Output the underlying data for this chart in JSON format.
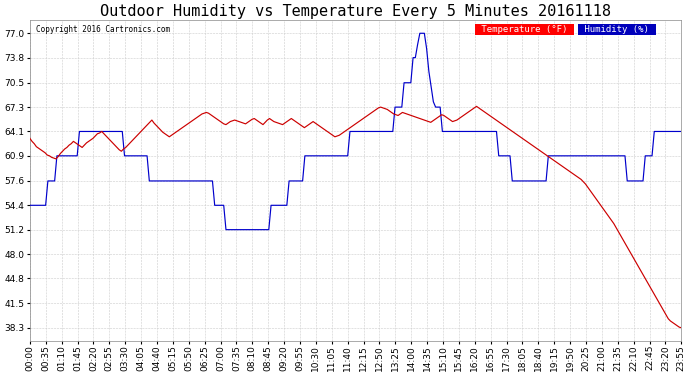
{
  "title": "Outdoor Humidity vs Temperature Every 5 Minutes 20161118",
  "copyright": "Copyright 2016 Cartronics.com",
  "legend_temp": "Temperature (°F)",
  "legend_hum": "Humidity (%)",
  "legend_temp_bg": "#ff0000",
  "legend_hum_bg": "#0000bb",
  "temp_color": "#cc0000",
  "hum_color": "#0000cc",
  "ylim": [
    36.6,
    78.7
  ],
  "yticks": [
    38.3,
    41.5,
    44.8,
    48.0,
    51.2,
    54.4,
    57.6,
    60.9,
    64.1,
    67.3,
    70.5,
    73.8,
    77.0
  ],
  "bg_color": "#ffffff",
  "plot_bg_color": "#ffffff",
  "grid_color": "#cccccc",
  "title_fontsize": 11,
  "axis_fontsize": 6.5,
  "temp_data": [
    63.2,
    62.8,
    62.5,
    62.1,
    61.9,
    61.7,
    61.5,
    61.3,
    61.0,
    60.9,
    60.7,
    60.6,
    60.5,
    60.8,
    61.2,
    61.5,
    61.8,
    62.0,
    62.3,
    62.5,
    62.8,
    62.6,
    62.4,
    62.2,
    62.0,
    62.3,
    62.6,
    62.8,
    63.0,
    63.2,
    63.5,
    63.8,
    63.9,
    64.1,
    63.8,
    63.5,
    63.2,
    62.9,
    62.6,
    62.3,
    62.0,
    61.7,
    61.5,
    61.8,
    62.0,
    62.3,
    62.6,
    62.9,
    63.2,
    63.5,
    63.8,
    64.1,
    64.4,
    64.7,
    65.0,
    65.3,
    65.6,
    65.2,
    64.9,
    64.6,
    64.3,
    64.0,
    63.8,
    63.6,
    63.4,
    63.6,
    63.8,
    64.0,
    64.2,
    64.4,
    64.6,
    64.8,
    65.0,
    65.2,
    65.4,
    65.6,
    65.8,
    66.0,
    66.2,
    66.4,
    66.5,
    66.6,
    66.5,
    66.3,
    66.1,
    65.9,
    65.7,
    65.5,
    65.3,
    65.1,
    65.0,
    65.2,
    65.4,
    65.5,
    65.6,
    65.5,
    65.4,
    65.3,
    65.2,
    65.1,
    65.3,
    65.5,
    65.7,
    65.8,
    65.6,
    65.4,
    65.2,
    65.0,
    65.3,
    65.6,
    65.8,
    65.6,
    65.4,
    65.3,
    65.2,
    65.1,
    65.0,
    65.2,
    65.4,
    65.6,
    65.8,
    65.6,
    65.4,
    65.2,
    65.0,
    64.8,
    64.6,
    64.8,
    65.0,
    65.2,
    65.4,
    65.2,
    65.0,
    64.8,
    64.6,
    64.4,
    64.2,
    64.0,
    63.8,
    63.6,
    63.4,
    63.5,
    63.6,
    63.8,
    64.0,
    64.2,
    64.4,
    64.6,
    64.8,
    65.0,
    65.2,
    65.4,
    65.6,
    65.8,
    66.0,
    66.2,
    66.4,
    66.6,
    66.8,
    67.0,
    67.2,
    67.3,
    67.2,
    67.1,
    67.0,
    66.8,
    66.6,
    66.4,
    66.3,
    66.2,
    66.4,
    66.6,
    66.5,
    66.4,
    66.3,
    66.2,
    66.1,
    66.0,
    65.9,
    65.8,
    65.7,
    65.6,
    65.5,
    65.4,
    65.3,
    65.5,
    65.7,
    65.9,
    66.1,
    66.3,
    66.2,
    66.0,
    65.8,
    65.6,
    65.4,
    65.5,
    65.6,
    65.8,
    66.0,
    66.2,
    66.4,
    66.6,
    66.8,
    67.0,
    67.2,
    67.4,
    67.2,
    67.0,
    66.8,
    66.6,
    66.4,
    66.2,
    66.0,
    65.8,
    65.6,
    65.4,
    65.2,
    65.0,
    64.8,
    64.6,
    64.4,
    64.2,
    64.0,
    63.8,
    63.6,
    63.4,
    63.2,
    63.0,
    62.8,
    62.6,
    62.4,
    62.2,
    62.0,
    61.8,
    61.6,
    61.4,
    61.2,
    61.0,
    60.8,
    60.6,
    60.4,
    60.2,
    60.0,
    59.8,
    59.6,
    59.4,
    59.2,
    59.0,
    58.8,
    58.6,
    58.4,
    58.2,
    58.0,
    57.8,
    57.5,
    57.2,
    56.8,
    56.4,
    56.0,
    55.6,
    55.2,
    54.8,
    54.4,
    54.0,
    53.6,
    53.2,
    52.8,
    52.4,
    52.0,
    51.5,
    51.0,
    50.5,
    50.0,
    49.5,
    49.0,
    48.5,
    48.0,
    47.5,
    47.0,
    46.5,
    46.0,
    45.5,
    45.0,
    44.5,
    44.0,
    43.5,
    43.0,
    42.5,
    42.0,
    41.5,
    41.0,
    40.5,
    40.0,
    39.5,
    39.2,
    39.0,
    38.8,
    38.6,
    38.4,
    38.3
  ],
  "hum_data": [
    54.4,
    54.4,
    54.4,
    54.4,
    54.4,
    54.4,
    54.4,
    54.4,
    57.6,
    57.6,
    57.6,
    57.6,
    60.9,
    60.9,
    60.9,
    60.9,
    60.9,
    60.9,
    60.9,
    60.9,
    60.9,
    60.9,
    64.1,
    64.1,
    64.1,
    64.1,
    64.1,
    64.1,
    64.1,
    64.1,
    64.1,
    64.1,
    64.1,
    64.1,
    64.1,
    64.1,
    64.1,
    64.1,
    64.1,
    64.1,
    64.1,
    64.1,
    60.9,
    60.9,
    60.9,
    60.9,
    60.9,
    60.9,
    60.9,
    60.9,
    60.9,
    60.9,
    60.9,
    57.6,
    57.6,
    57.6,
    57.6,
    57.6,
    57.6,
    57.6,
    57.6,
    57.6,
    57.6,
    57.6,
    57.6,
    57.6,
    57.6,
    57.6,
    57.6,
    57.6,
    57.6,
    57.6,
    57.6,
    57.6,
    57.6,
    57.6,
    57.6,
    57.6,
    57.6,
    57.6,
    57.6,
    57.6,
    54.4,
    54.4,
    54.4,
    54.4,
    54.4,
    51.2,
    51.2,
    51.2,
    51.2,
    51.2,
    51.2,
    51.2,
    51.2,
    51.2,
    51.2,
    51.2,
    51.2,
    51.2,
    51.2,
    51.2,
    51.2,
    51.2,
    51.2,
    51.2,
    51.2,
    54.4,
    54.4,
    54.4,
    54.4,
    54.4,
    54.4,
    54.4,
    54.4,
    57.6,
    57.6,
    57.6,
    57.6,
    57.6,
    57.6,
    57.6,
    60.9,
    60.9,
    60.9,
    60.9,
    60.9,
    60.9,
    60.9,
    60.9,
    60.9,
    60.9,
    60.9,
    60.9,
    60.9,
    60.9,
    60.9,
    60.9,
    60.9,
    60.9,
    60.9,
    60.9,
    64.1,
    64.1,
    64.1,
    64.1,
    64.1,
    64.1,
    64.1,
    64.1,
    64.1,
    64.1,
    64.1,
    64.1,
    64.1,
    64.1,
    64.1,
    64.1,
    64.1,
    64.1,
    64.1,
    64.1,
    67.3,
    67.3,
    67.3,
    67.3,
    70.5,
    70.5,
    70.5,
    70.5,
    73.8,
    73.8,
    75.5,
    77.0,
    77.0,
    77.0,
    75.0,
    72.0,
    70.0,
    68.0,
    67.3,
    67.3,
    67.3,
    64.1,
    64.1,
    64.1,
    64.1,
    64.1,
    64.1,
    64.1,
    64.1,
    64.1,
    64.1,
    64.1,
    64.1,
    64.1,
    64.1,
    64.1,
    64.1,
    64.1,
    64.1,
    64.1,
    64.1,
    64.1,
    64.1,
    64.1,
    64.1,
    64.1,
    60.9,
    60.9,
    60.9,
    60.9,
    60.9,
    60.9,
    57.6,
    57.6,
    57.6,
    57.6,
    57.6,
    57.6,
    57.6,
    57.6,
    57.6,
    57.6,
    57.6,
    57.6,
    57.6,
    57.6,
    57.6,
    57.6,
    60.9,
    60.9,
    60.9,
    60.9,
    60.9,
    60.9,
    60.9,
    60.9,
    60.9,
    60.9,
    60.9,
    60.9,
    60.9,
    60.9,
    60.9,
    60.9,
    60.9,
    60.9,
    60.9,
    60.9,
    60.9,
    60.9,
    60.9,
    60.9,
    60.9,
    60.9,
    60.9,
    60.9,
    60.9,
    60.9,
    60.9,
    60.9,
    60.9,
    60.9,
    60.9,
    57.6,
    57.6,
    57.6,
    57.6,
    57.6,
    57.6,
    57.6,
    57.6,
    60.9,
    60.9,
    60.9,
    60.9,
    64.1,
    64.1,
    64.1,
    64.1,
    64.1,
    64.1,
    64.1,
    64.1,
    64.1,
    64.1,
    64.1,
    64.1,
    64.1
  ],
  "x_tick_labels": [
    "00:00",
    "00:35",
    "01:10",
    "01:45",
    "02:20",
    "02:55",
    "03:30",
    "04:05",
    "04:40",
    "05:15",
    "05:50",
    "06:25",
    "07:00",
    "07:35",
    "08:10",
    "08:45",
    "09:20",
    "09:55",
    "10:30",
    "11:05",
    "11:40",
    "12:15",
    "12:50",
    "13:25",
    "14:00",
    "14:35",
    "15:10",
    "15:45",
    "16:20",
    "16:55",
    "17:30",
    "18:05",
    "18:40",
    "19:15",
    "19:50",
    "20:25",
    "21:00",
    "21:35",
    "22:10",
    "22:45",
    "23:20",
    "23:55"
  ]
}
